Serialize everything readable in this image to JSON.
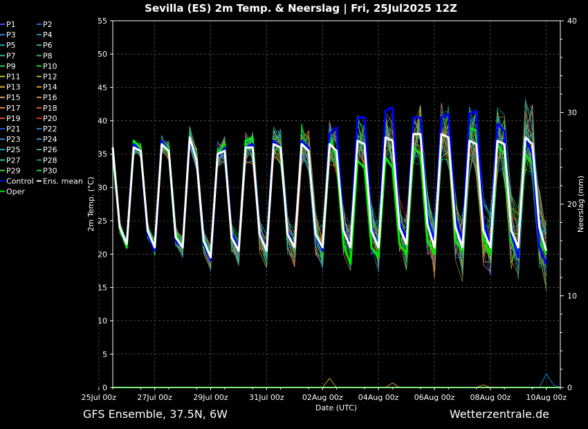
{
  "chart_data": {
    "type": "line",
    "title": "Sevilla  (ES)  2m Temp. & Neerslag | Fri, 25Jul2025 12Z",
    "xlabel": "Date (UTC)",
    "ylabel_left": "2m Temp. (°C)",
    "ylabel_right": "Neerslag (mm)",
    "ylim_left": [
      0,
      55
    ],
    "ylim_right": [
      0,
      40
    ],
    "yticks_left": [
      "0",
      "5",
      "10",
      "15",
      "20",
      "25",
      "30",
      "35",
      "40",
      "45",
      "50",
      "55"
    ],
    "yticks_right": [
      "0",
      "10",
      "20",
      "30",
      "40"
    ],
    "xlim_hours": [
      0,
      384
    ],
    "grid": true,
    "legend_position": "left, outside plot",
    "xticks": [
      {
        "label": "25Jul 00z",
        "h": -12
      },
      {
        "label": "27Jul 00z",
        "h": 36
      },
      {
        "label": "29Jul 00z",
        "h": 84
      },
      {
        "label": "31Jul 00z",
        "h": 132
      },
      {
        "label": "02Aug 00z",
        "h": 180
      },
      {
        "label": "04Aug 00z",
        "h": 228
      },
      {
        "label": "06Aug 00z",
        "h": 276
      },
      {
        "label": "08Aug 00z",
        "h": 324
      },
      {
        "label": "10Aug 00z",
        "h": 372
      }
    ],
    "time_step_hours": 6,
    "series": [
      {
        "name": "Ens. mean",
        "color": "#ffffff",
        "width": 3,
        "values": [
          36,
          24,
          21.5,
          36,
          35.5,
          23.5,
          21,
          36.5,
          35.5,
          22.5,
          21,
          37.5,
          34,
          22,
          19.5,
          35,
          35.5,
          22.5,
          20.5,
          36,
          36,
          23,
          20.5,
          36.5,
          36,
          23,
          21,
          36.5,
          35.5,
          23,
          21,
          36.5,
          35.5,
          23.5,
          21,
          37,
          36.5,
          23.5,
          21,
          37.5,
          37,
          24,
          21.5,
          38,
          38,
          24.5,
          21,
          38,
          37.5,
          24,
          21,
          37,
          36.5,
          23.5,
          21,
          37,
          36.5,
          23.5,
          21,
          37.5,
          36.5,
          24,
          20.5
        ]
      },
      {
        "name": "Control",
        "color": "#0000ff",
        "width": 3,
        "values": [
          36,
          24,
          21.5,
          36.5,
          35.5,
          23,
          20.5,
          37,
          35.5,
          22,
          21,
          37,
          34,
          21.5,
          19,
          34.5,
          36,
          23,
          21,
          36,
          36.5,
          23.5,
          20.5,
          37,
          36,
          23.5,
          21,
          37,
          36,
          23,
          20.5,
          38,
          39,
          24,
          21,
          40.5,
          40.5,
          24,
          21,
          41.5,
          42,
          25,
          22,
          40.5,
          40.5,
          25.5,
          22,
          40.5,
          41,
          25.5,
          22,
          41,
          41.5,
          25,
          21.5,
          39.5,
          38.5,
          23,
          19.5,
          37.5,
          35,
          21,
          18.5
        ]
      },
      {
        "name": "Oper",
        "color": "#00ee00",
        "width": 3,
        "values": [
          35,
          24,
          21,
          37,
          36,
          23,
          21,
          37,
          36,
          23,
          21,
          37.5,
          34,
          21,
          19.5,
          35,
          36.5,
          22.5,
          20.5,
          37,
          37.5,
          23,
          20.5,
          37,
          36,
          23,
          21,
          37,
          36,
          23,
          21,
          37.5,
          34.5,
          21.5,
          18.5,
          34,
          33,
          21,
          19.5,
          34.5,
          33,
          21.5,
          20,
          36,
          35,
          22,
          20,
          38,
          37.5,
          22,
          20.5,
          39,
          38.5,
          22.5,
          20,
          36.5,
          35,
          22,
          19.5,
          35,
          33.5,
          22,
          20
        ]
      }
    ],
    "precip_series": [
      {
        "name": "P12",
        "color": "#d4a017",
        "points": [
          [
            180,
            0
          ],
          [
            186,
            1
          ],
          [
            192,
            0
          ]
        ]
      },
      {
        "name": "P17",
        "color": "#e0882c",
        "points": [
          [
            234,
            0
          ],
          [
            240,
            0.5
          ],
          [
            246,
            0
          ]
        ]
      },
      {
        "name": "P22",
        "color": "#1e7fd0",
        "points": [
          [
            366,
            0
          ],
          [
            372,
            1.5
          ],
          [
            378,
            0.3
          ],
          [
            384,
            0
          ]
        ]
      },
      {
        "name": "P16",
        "color": "#d08850",
        "points": [
          [
            312,
            0
          ],
          [
            318,
            0.3
          ],
          [
            324,
            0
          ]
        ]
      }
    ],
    "legend": [
      {
        "label": "P1",
        "color": "#3a4fff"
      },
      {
        "label": "P2",
        "color": "#1e6fe8"
      },
      {
        "label": "P3",
        "color": "#2a84d8"
      },
      {
        "label": "P4",
        "color": "#1f93c0"
      },
      {
        "label": "P5",
        "color": "#19a8b0"
      },
      {
        "label": "P6",
        "color": "#18b890"
      },
      {
        "label": "P7",
        "color": "#18c070"
      },
      {
        "label": "P8",
        "color": "#20c050"
      },
      {
        "label": "P9",
        "color": "#30d040"
      },
      {
        "label": "P10",
        "color": "#20e020"
      },
      {
        "label": "P11",
        "color": "#c8c840"
      },
      {
        "label": "P12",
        "color": "#d4b020"
      },
      {
        "label": "P13",
        "color": "#d8b830"
      },
      {
        "label": "P14",
        "color": "#e0a020"
      },
      {
        "label": "P15",
        "color": "#d8a878"
      },
      {
        "label": "P16",
        "color": "#d88850"
      },
      {
        "label": "P17",
        "color": "#e88030"
      },
      {
        "label": "P18",
        "color": "#e06040"
      },
      {
        "label": "P19",
        "color": "#e85020"
      },
      {
        "label": "P20",
        "color": "#e83010"
      },
      {
        "label": "P21",
        "color": "#2c50e0"
      },
      {
        "label": "P22",
        "color": "#1e80d0"
      },
      {
        "label": "P23",
        "color": "#3a8cd0"
      },
      {
        "label": "P24",
        "color": "#2898c8"
      },
      {
        "label": "P25",
        "color": "#20a8b8"
      },
      {
        "label": "P26",
        "color": "#20b8a0"
      },
      {
        "label": "P27",
        "color": "#28c888"
      },
      {
        "label": "P28",
        "color": "#20a850"
      },
      {
        "label": "P29",
        "color": "#40d840"
      },
      {
        "label": "P30",
        "color": "#10f010"
      },
      {
        "label": "Control",
        "color": "#0000ff"
      },
      {
        "label": "Ens. mean",
        "color": "#ffffff"
      },
      {
        "label": "Oper",
        "color": "#00ee00"
      }
    ]
  },
  "footer": {
    "left": "GFS Ensemble, 37.5N, 6W",
    "right": "Wetterzentrale.de"
  }
}
